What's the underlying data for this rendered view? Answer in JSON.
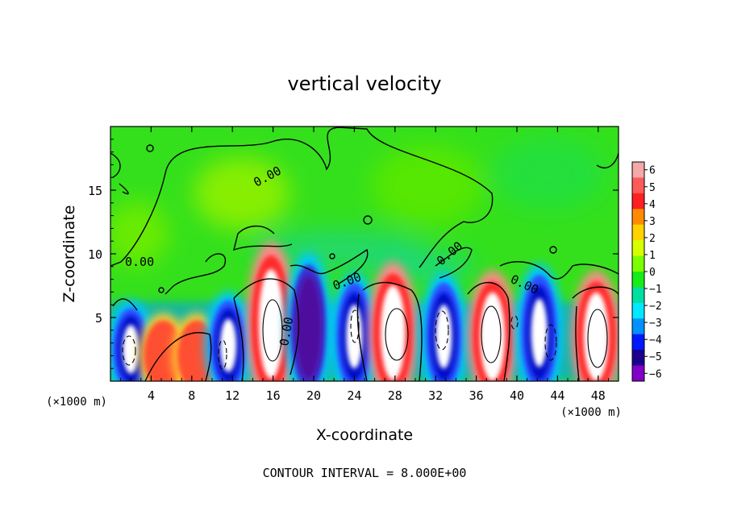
{
  "chart_data": {
    "type": "heatmap",
    "title": "vertical velocity",
    "xlabel": "X-coordinate",
    "ylabel": "Z-coordinate",
    "x_unit_left": "(×1000 m)",
    "x_unit_right": "(×1000 m)",
    "footer": "CONTOUR INTERVAL = 8.000E+00",
    "xlim": [
      0,
      50
    ],
    "ylim": [
      0,
      20
    ],
    "x_ticks": [
      4,
      8,
      12,
      16,
      20,
      24,
      28,
      32,
      36,
      40,
      44,
      48
    ],
    "y_ticks": [
      5,
      10,
      15
    ],
    "contour_label": "0.00",
    "colorbar": {
      "range": [
        -6,
        6
      ],
      "tick_labels": [
        "6",
        "5",
        "4",
        "3",
        "2",
        "1",
        "0",
        "−1",
        "−2",
        "−3",
        "−4",
        "−5",
        "−6"
      ],
      "colors": [
        "#f4a8a8",
        "#ff5a5a",
        "#ff2020",
        "#ff8c00",
        "#ffd200",
        "#d7ff00",
        "#7cff00",
        "#18ec18",
        "#00dfa0",
        "#00e8ff",
        "#0090ff",
        "#0018ff",
        "#1a008c",
        "#8000c8"
      ]
    },
    "cells": [
      {
        "x": 2,
        "z": 2.5,
        "w": -6
      },
      {
        "x": 5.2,
        "z": 2,
        "w": 3.5
      },
      {
        "x": 8.5,
        "z": 2,
        "w": 3.5
      },
      {
        "x": 11.6,
        "z": 2.8,
        "w": -6
      },
      {
        "x": 15.8,
        "z": 4.5,
        "w": 6
      },
      {
        "x": 19.5,
        "z": 4.2,
        "w": -5
      },
      {
        "x": 24,
        "z": 3.5,
        "w": -6
      },
      {
        "x": 27.8,
        "z": 3.8,
        "w": 6
      },
      {
        "x": 32.8,
        "z": 3.5,
        "w": -6
      },
      {
        "x": 37.6,
        "z": 3.5,
        "w": 6
      },
      {
        "x": 42.2,
        "z": 3.8,
        "w": -6
      },
      {
        "x": 47.8,
        "z": 3.5,
        "w": 6
      }
    ]
  }
}
